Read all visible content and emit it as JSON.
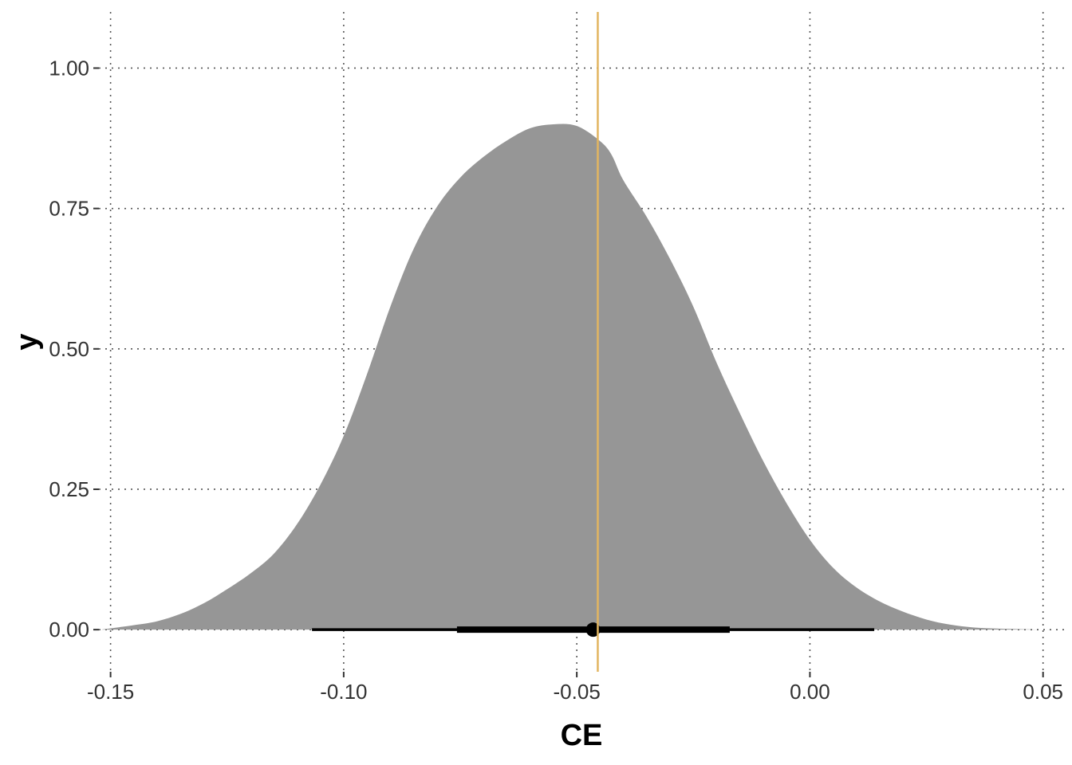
{
  "chart_data": {
    "type": "area",
    "xlabel": "CE",
    "ylabel": "y",
    "xlim": [
      -0.1525,
      0.0545
    ],
    "ylim": [
      -0.075,
      1.1
    ],
    "x_ticks": [
      -0.15,
      -0.1,
      -0.05,
      0.0,
      0.05
    ],
    "x_tick_labels": [
      "-0.15",
      "-0.10",
      "-0.05",
      "0.00",
      "0.05"
    ],
    "y_ticks": [
      0.0,
      0.25,
      0.5,
      0.75,
      1.0
    ],
    "y_tick_labels": [
      "0.00",
      "0.25",
      "0.50",
      "0.75",
      "1.00"
    ],
    "grid": true,
    "density": {
      "x": [
        -0.152,
        -0.145,
        -0.14,
        -0.135,
        -0.13,
        -0.125,
        -0.12,
        -0.115,
        -0.11,
        -0.105,
        -0.1,
        -0.095,
        -0.09,
        -0.085,
        -0.08,
        -0.075,
        -0.07,
        -0.065,
        -0.06,
        -0.055,
        -0.05,
        -0.045,
        -0.0425,
        -0.04,
        -0.035,
        -0.03,
        -0.025,
        -0.02,
        -0.015,
        -0.01,
        -0.005,
        0.0,
        0.005,
        0.01,
        0.015,
        0.02,
        0.025,
        0.03,
        0.035,
        0.04,
        0.045,
        0.05,
        0.054
      ],
      "y": [
        0.0,
        0.008,
        0.015,
        0.028,
        0.047,
        0.072,
        0.1,
        0.135,
        0.188,
        0.258,
        0.345,
        0.455,
        0.575,
        0.678,
        0.753,
        0.805,
        0.842,
        0.871,
        0.893,
        0.9,
        0.897,
        0.87,
        0.845,
        0.8,
        0.735,
        0.66,
        0.575,
        0.475,
        0.385,
        0.3,
        0.225,
        0.16,
        0.11,
        0.075,
        0.05,
        0.032,
        0.018,
        0.009,
        0.004,
        0.002,
        0.001,
        0.0,
        0.0
      ],
      "color": "#969696"
    },
    "reference_line": {
      "x": -0.0455,
      "color": "#E2B560"
    },
    "point_interval": {
      "point": -0.0465,
      "inner_interval": [
        -0.0757,
        -0.0172
      ],
      "outer_interval": [
        -0.1068,
        0.0138
      ],
      "color": "#000000"
    }
  }
}
